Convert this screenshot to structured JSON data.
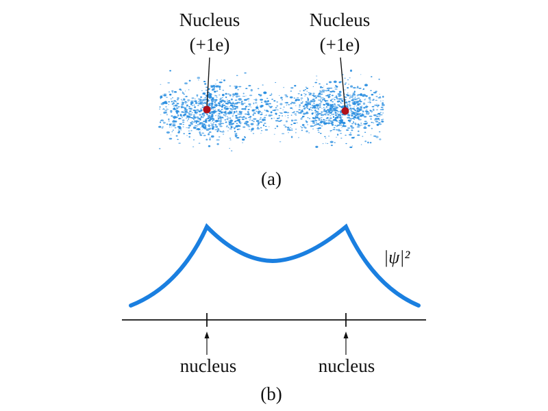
{
  "panel_a": {
    "caption": "(a)",
    "nucleus_left": {
      "name": "Nucleus",
      "charge": "(+1e)"
    },
    "nucleus_right": {
      "name": "Nucleus",
      "charge": "(+1e)"
    }
  },
  "panel_b": {
    "caption": "(b)",
    "curve_label": "|ψ|²",
    "marker_left": "nucleus",
    "marker_right": "nucleus"
  },
  "colors": {
    "cloud": "#2a8ee0",
    "curve": "#1a7fe0",
    "nucleus_dot": "#b0101a",
    "ink": "#111111"
  }
}
